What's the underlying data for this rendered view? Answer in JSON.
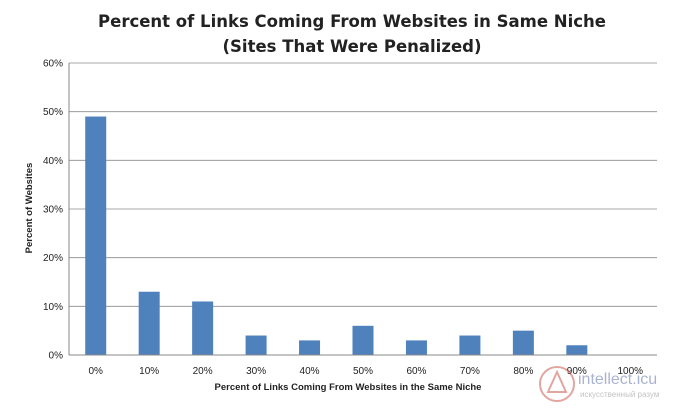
{
  "chart_data": {
    "type": "bar",
    "title": "Percent of Links Coming From Websites in Same Niche",
    "subtitle": "(Sites That Were Penalized)",
    "xlabel": "Percent of Links Coming From Websites in the Same Niche",
    "ylabel": "Percent of Websites",
    "categories": [
      "0%",
      "10%",
      "20%",
      "30%",
      "40%",
      "50%",
      "60%",
      "70%",
      "80%",
      "90%",
      "100%"
    ],
    "values": [
      49,
      13,
      11,
      4,
      3,
      6,
      3,
      4,
      5,
      2,
      0
    ],
    "ylim": [
      0,
      60
    ],
    "yticks": [
      0,
      10,
      20,
      30,
      40,
      50,
      60
    ],
    "ytick_labels": [
      "0%",
      "10%",
      "20%",
      "30%",
      "40%",
      "50%",
      "60%"
    ],
    "grid": true,
    "legend": "none",
    "bar_color": "#4f81bd"
  },
  "watermark": {
    "text": "intellect.icu",
    "subtext": "искусственный разум"
  }
}
